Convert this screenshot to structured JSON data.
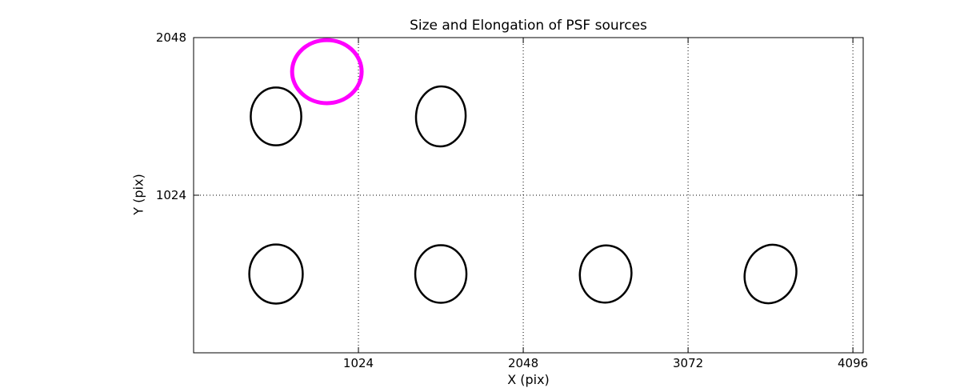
{
  "chart_data": {
    "type": "scatter",
    "marker": "ellipse",
    "title": "Size and Elongation of PSF sources",
    "xlabel": "X (pix)",
    "ylabel": "Y (pix)",
    "x_ticks": [
      1024,
      2048,
      3072,
      4096
    ],
    "y_ticks": [
      1024,
      2048
    ],
    "xlim": [
      0,
      4160
    ],
    "ylim": [
      0,
      2048
    ],
    "grid": "dotted",
    "legend": "none",
    "axis_color": "#000000",
    "colors": {
      "normal": "#000000",
      "highlight": "#ff00ff"
    },
    "sources": [
      {
        "x": 828,
        "y": 1827,
        "semi_x": 216,
        "semi_y": 205,
        "angle_deg": 0,
        "color": "#ff00ff",
        "line_width": 5,
        "role": "highlighted"
      },
      {
        "x": 512,
        "y": 1536,
        "semi_x": 157,
        "semi_y": 188,
        "angle_deg": 0,
        "color": "#000000",
        "line_width": 2.5,
        "role": "normal"
      },
      {
        "x": 1536,
        "y": 1536,
        "semi_x": 154,
        "semi_y": 195,
        "angle_deg": 4,
        "color": "#000000",
        "line_width": 2.5,
        "role": "normal"
      },
      {
        "x": 512,
        "y": 512,
        "semi_x": 166,
        "semi_y": 192,
        "angle_deg": 0,
        "color": "#000000",
        "line_width": 2.5,
        "role": "normal"
      },
      {
        "x": 1536,
        "y": 512,
        "semi_x": 159,
        "semi_y": 187,
        "angle_deg": 0,
        "color": "#000000",
        "line_width": 2.5,
        "role": "normal"
      },
      {
        "x": 2560,
        "y": 512,
        "semi_x": 160,
        "semi_y": 186,
        "angle_deg": 8,
        "color": "#000000",
        "line_width": 2.5,
        "role": "normal"
      },
      {
        "x": 3584,
        "y": 512,
        "semi_x": 158,
        "semi_y": 192,
        "angle_deg": 18,
        "color": "#000000",
        "line_width": 2.5,
        "role": "normal"
      }
    ]
  }
}
